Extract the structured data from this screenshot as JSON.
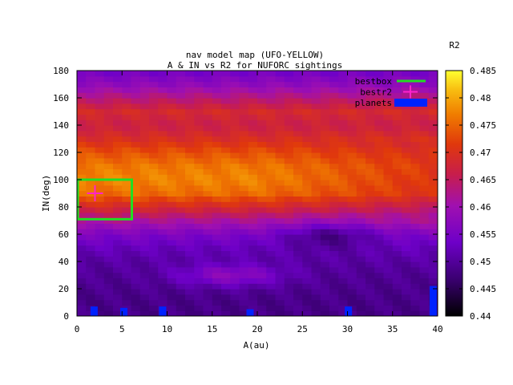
{
  "chart_data": {
    "type": "heatmap",
    "title": "nav model map (UFO-YELLOW)",
    "subtitle": "A & IN vs R2 for NUFORC sightings",
    "xlabel": "A(au)",
    "ylabel": "IN(deg)",
    "xlim": [
      0,
      40
    ],
    "ylim": [
      0,
      180
    ],
    "xticks": [
      "0",
      "5",
      "10",
      "15",
      "20",
      "25",
      "30",
      "35",
      "40"
    ],
    "yticks": [
      "0",
      "20",
      "40",
      "60",
      "80",
      "100",
      "120",
      "140",
      "160",
      "180"
    ],
    "colorbar": {
      "label": "R2",
      "min": 0.44,
      "max": 0.485,
      "ticks": [
        "0.44",
        "0.445",
        "0.45",
        "0.455",
        "0.46",
        "0.465",
        "0.47",
        "0.475",
        "0.48",
        "0.485"
      ]
    },
    "legend": {
      "placement": "top-right",
      "entries": [
        {
          "label": "bestbox",
          "color": "#22dd22"
        },
        {
          "label": "bestr2",
          "color": "#ff22cc"
        },
        {
          "label": "planets",
          "color": "#0022ff"
        }
      ]
    },
    "bestbox": {
      "a_range": [
        0,
        6
      ],
      "in_range": [
        71,
        100
      ]
    },
    "bestr2": {
      "a": 2,
      "in": 90
    },
    "planets": [
      {
        "a": 1.9,
        "in": 7
      },
      {
        "a": 5.2,
        "in": 6
      },
      {
        "a": 9.5,
        "in": 7
      },
      {
        "a": 19.2,
        "in": 5
      },
      {
        "a": 30.1,
        "in": 7
      },
      {
        "a": 39.5,
        "in": 22
      }
    ],
    "r2_profile": [
      {
        "in": 0,
        "r2": 0.4485
      },
      {
        "in": 10,
        "r2": 0.4485
      },
      {
        "in": 20,
        "r2": 0.449
      },
      {
        "in": 30,
        "r2": 0.4495
      },
      {
        "in": 40,
        "r2": 0.4505
      },
      {
        "in": 50,
        "r2": 0.4525
      },
      {
        "in": 60,
        "r2": 0.4555
      },
      {
        "in": 70,
        "r2": 0.4615
      },
      {
        "in": 80,
        "r2": 0.4685
      },
      {
        "in": 90,
        "r2": 0.4755
      },
      {
        "in": 100,
        "r2": 0.4775
      },
      {
        "in": 110,
        "r2": 0.4765
      },
      {
        "in": 120,
        "r2": 0.4735
      },
      {
        "in": 130,
        "r2": 0.4695
      },
      {
        "in": 140,
        "r2": 0.4665
      },
      {
        "in": 150,
        "r2": 0.4685
      },
      {
        "in": 160,
        "r2": 0.4635
      },
      {
        "in": 170,
        "r2": 0.458
      },
      {
        "in": 180,
        "r2": 0.454
      }
    ]
  }
}
